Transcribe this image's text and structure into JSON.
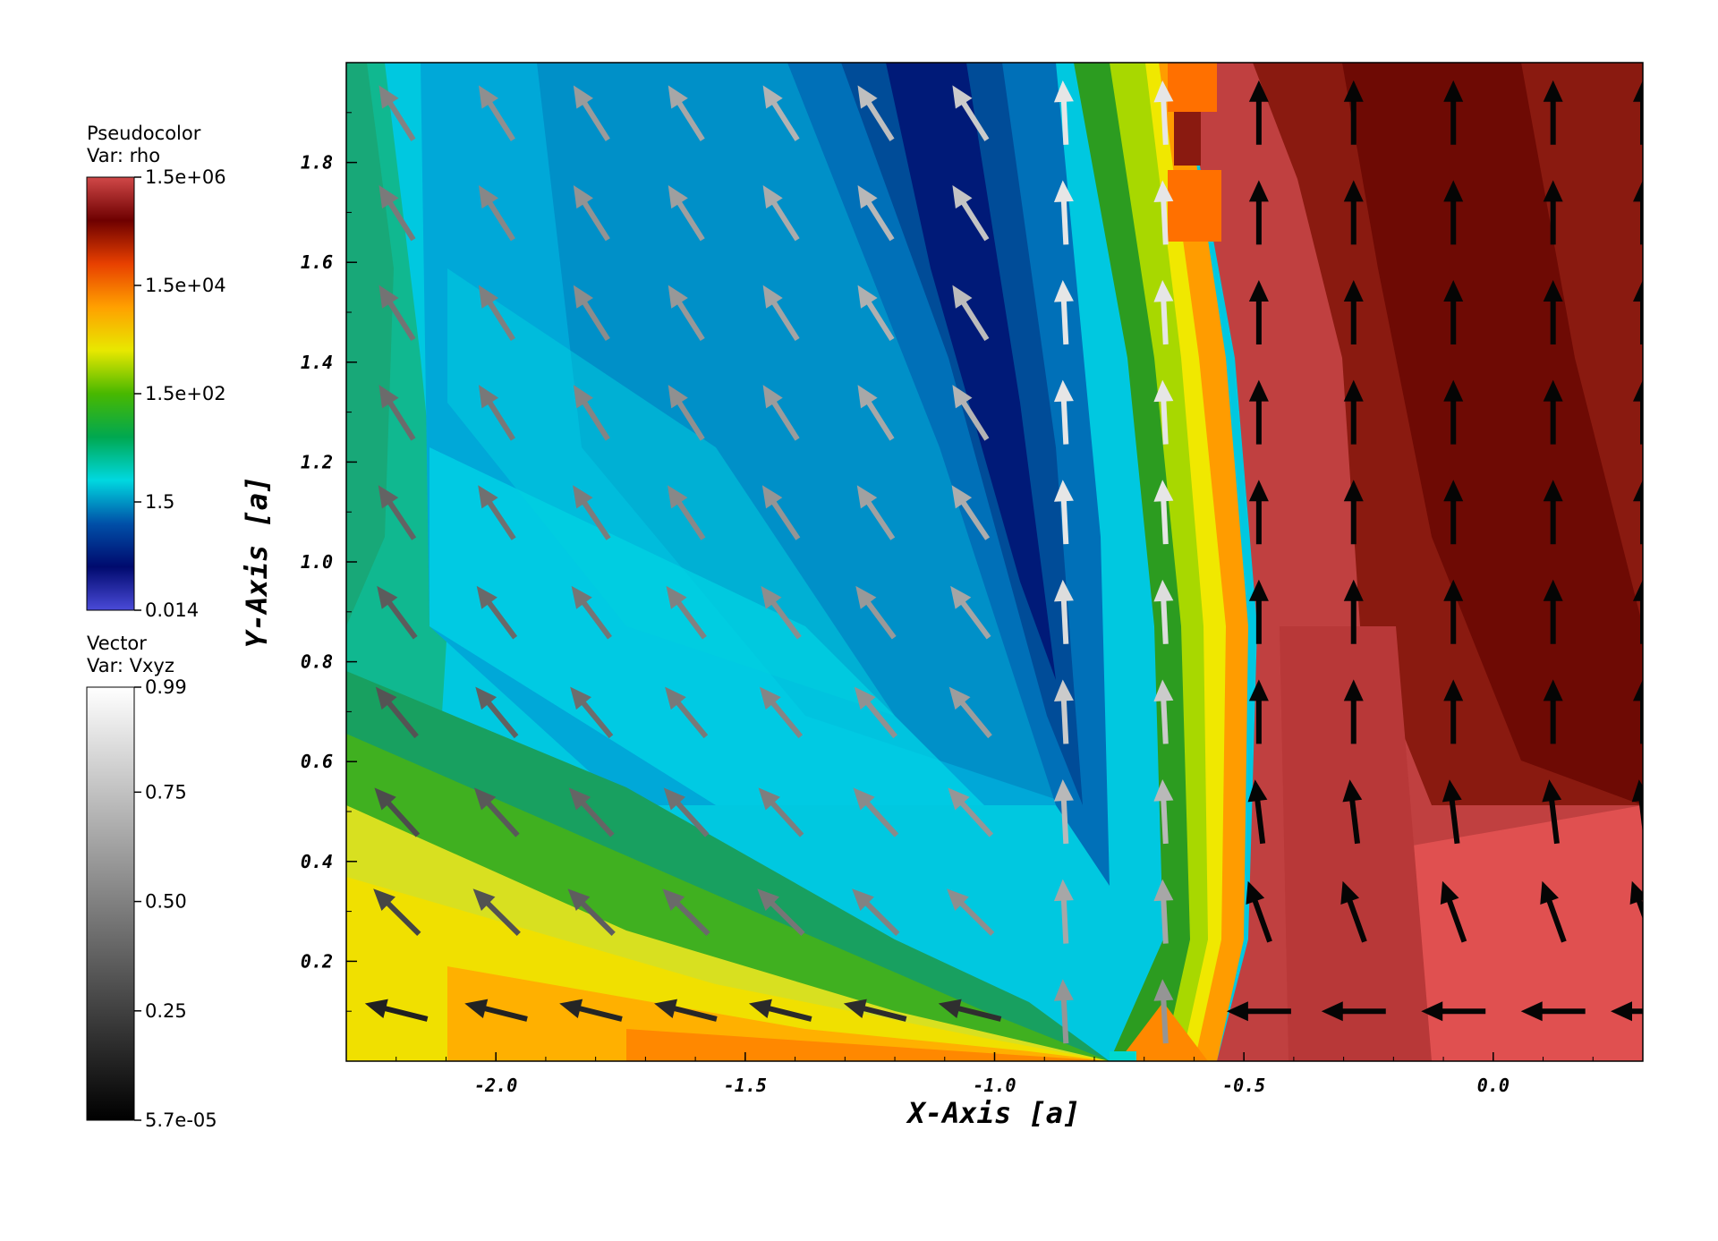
{
  "chart_data": {
    "type": "heatmap",
    "subtype": "pseudocolor-with-vector-field",
    "title": "",
    "xlabel": "X-Axis [a]",
    "ylabel": "Y-Axis [a]",
    "xlim": [
      -2.3,
      0.3
    ],
    "ylim": [
      0.0,
      2.0
    ],
    "x_ticks": [
      -2.0,
      -1.5,
      -1.0,
      -0.5,
      0.0
    ],
    "x_tick_labels": [
      "-2.0",
      "-1.5",
      "-1.0",
      "-0.5",
      "0.0"
    ],
    "y_ticks": [
      0.2,
      0.4,
      0.6,
      0.8,
      1.0,
      1.2,
      1.4,
      1.6,
      1.8
    ],
    "y_tick_labels": [
      "0.2",
      "0.4",
      "0.6",
      "0.8",
      "1.0",
      "1.2",
      "1.4",
      "1.6",
      "1.8"
    ],
    "grid": false,
    "legend_placement": "left",
    "pseudocolor": {
      "title_line1": "Pseudocolor",
      "title_line2": "Var: rho",
      "scale": "log",
      "min": 0.014,
      "max": 1500000,
      "tick_labels": [
        "1.5e+06",
        "1.5e+04",
        "1.5e+02",
        "1.5",
        "0.014"
      ],
      "colormap": [
        "#4a4ad8",
        "#000a6e",
        "#0050a8",
        "#00d8e0",
        "#00a850",
        "#48b800",
        "#e8e800",
        "#ffa000",
        "#e84000",
        "#6e0000",
        "#d04848"
      ]
    },
    "vector": {
      "title_line1": "Vector",
      "title_line2": "Var: Vxyz",
      "scale": "linear",
      "min": 5.7e-05,
      "max": 0.99,
      "tick_labels": [
        "0.99",
        "0.75",
        "0.50",
        "0.25",
        "5.7e-05"
      ],
      "tick_values": [
        0.99,
        0.75,
        0.5,
        0.25,
        5.7e-05
      ],
      "colormap": [
        "#000000",
        "#ffffff"
      ]
    },
    "density_regions": [
      {
        "name": "low-density cavity (cyan/blue)",
        "x_range": [
          -2.15,
          -0.65
        ],
        "y_range": [
          0.3,
          2.0
        ],
        "approx_rho": 1.5
      },
      {
        "name": "jet shell (yellow/green)",
        "x_range": [
          -0.7,
          -0.55
        ],
        "y_range": [
          0.0,
          2.0
        ],
        "approx_rho": 150
      },
      {
        "name": "dense ambient (red)",
        "x_range": [
          -0.55,
          0.3
        ],
        "y_range": [
          0.0,
          2.0
        ],
        "approx_rho": 1500000
      },
      {
        "name": "equatorial dense flow (yellow/orange)",
        "x_range": [
          -2.3,
          -0.75
        ],
        "y_range": [
          0.0,
          0.35
        ],
        "approx_rho": 1500
      }
    ],
    "vector_field": {
      "columns_x": [
        -2.2,
        -2.0,
        -1.81,
        -1.62,
        -1.43,
        -1.24,
        -1.05,
        -0.86,
        -0.66,
        -0.47,
        -0.28,
        -0.08,
        0.12,
        0.3
      ],
      "rows_y": [
        1.9,
        1.7,
        1.5,
        1.3,
        1.1,
        0.9,
        0.7,
        0.5,
        0.3,
        0.1
      ],
      "description": "Outflow vectors: up-left in the cavity (grey to white), upward along the jet (white), leftward near the equator (dark), upward/up-left in the dense region (black)"
    }
  }
}
